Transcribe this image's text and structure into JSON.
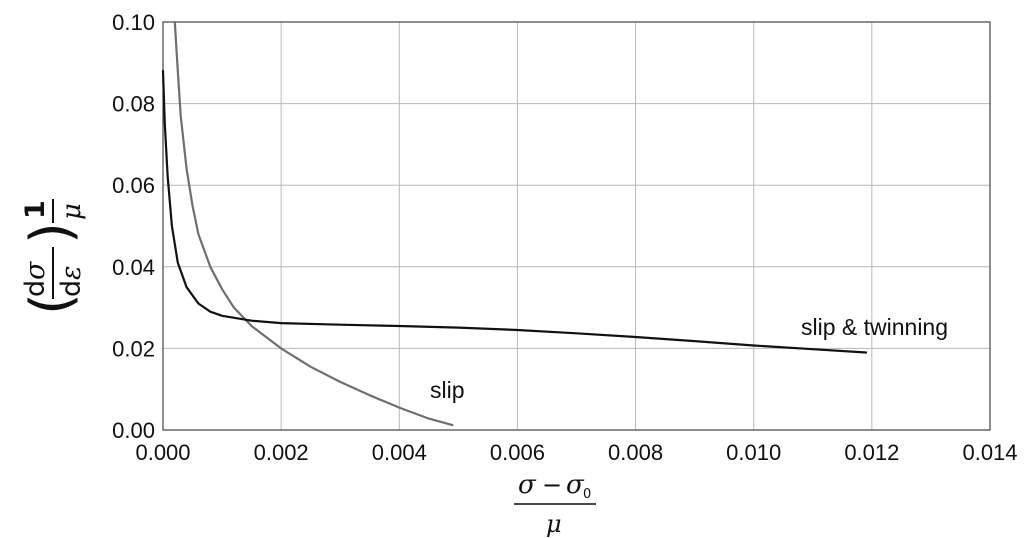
{
  "chart_data": {
    "type": "line",
    "title": "",
    "xlim": [
      0,
      0.014
    ],
    "ylim": [
      0,
      0.1
    ],
    "x_ticks": [
      "0.000",
      "0.002",
      "0.004",
      "0.006",
      "0.008",
      "0.010",
      "0.012",
      "0.014"
    ],
    "y_ticks": [
      "0.00",
      "0.02",
      "0.04",
      "0.06",
      "0.08",
      "0.10"
    ],
    "grid": true,
    "xlabel": {
      "numerator_symbol": "σ",
      "minus": "−",
      "subtracted_symbol": "σ",
      "subscript": "0",
      "denominator_symbol": "μ"
    },
    "ylabel": {
      "d_top": "d",
      "sigma": "σ",
      "d_bottom": "d",
      "epsilon": "ε",
      "one": "1",
      "mu": "μ"
    },
    "series": [
      {
        "label": "slip",
        "color": "#6f6f6f",
        "x": [
          0.0002,
          0.00025,
          0.0003,
          0.0004,
          0.0005,
          0.0006,
          0.0008,
          0.001,
          0.0012,
          0.0015,
          0.002,
          0.0025,
          0.003,
          0.0035,
          0.004,
          0.0045,
          0.0049
        ],
        "y": [
          0.1,
          0.088,
          0.077,
          0.064,
          0.055,
          0.048,
          0.04,
          0.0345,
          0.03,
          0.0255,
          0.02,
          0.0155,
          0.0118,
          0.0085,
          0.0055,
          0.0028,
          0.0012
        ]
      },
      {
        "label": "slip & twinning",
        "color": "#111111",
        "x": [
          0.0,
          3e-05,
          8e-05,
          0.00015,
          0.00025,
          0.0004,
          0.0006,
          0.0008,
          0.001,
          0.0015,
          0.002,
          0.003,
          0.004,
          0.005,
          0.006,
          0.007,
          0.008,
          0.009,
          0.01,
          0.011,
          0.0119
        ],
        "y": [
          0.088,
          0.075,
          0.062,
          0.05,
          0.041,
          0.035,
          0.031,
          0.029,
          0.028,
          0.0268,
          0.0262,
          0.0258,
          0.0255,
          0.0251,
          0.0245,
          0.0237,
          0.0228,
          0.0218,
          0.0207,
          0.0198,
          0.019
        ]
      }
    ]
  }
}
